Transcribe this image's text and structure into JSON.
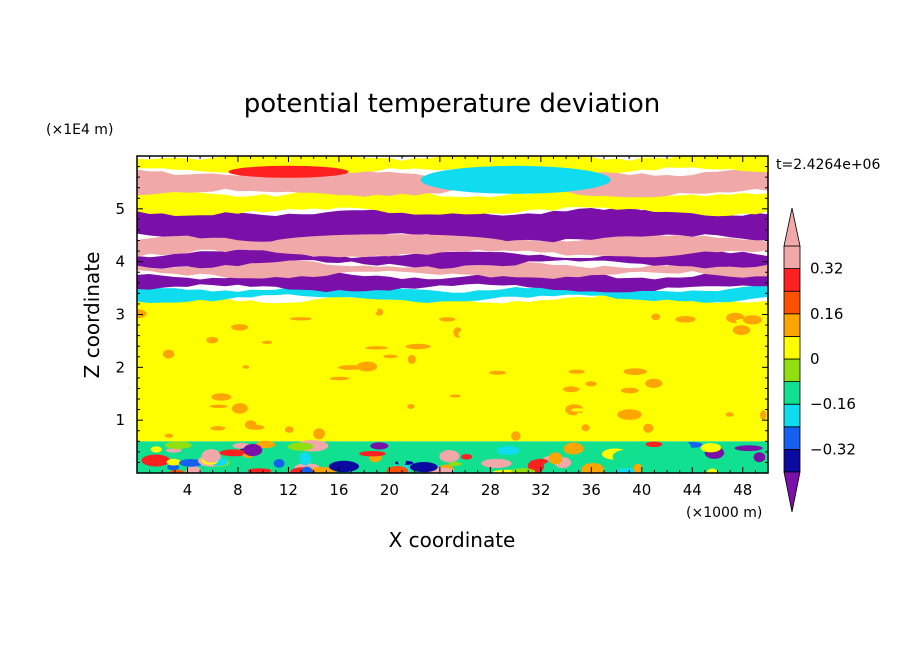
{
  "chart_data": {
    "type": "heatmap",
    "title": "potential temperature deviation",
    "xlabel": "X coordinate",
    "ylabel": "Z coordinate",
    "x_unit": "(×1000 m)",
    "y_unit": "(×1E4 m)",
    "time_label": "t=2.4264e+06",
    "xlim": [
      0,
      50
    ],
    "ylim": [
      0,
      6
    ],
    "x_ticks": [
      4,
      8,
      12,
      16,
      20,
      24,
      28,
      32,
      36,
      40,
      44,
      48
    ],
    "x_tick_labels": [
      "4",
      "8",
      "12",
      "16",
      "20",
      "24",
      "28",
      "32",
      "36",
      "40",
      "44",
      "48"
    ],
    "y_ticks": [
      1,
      2,
      3,
      4,
      5
    ],
    "y_tick_labels": [
      "1",
      "2",
      "3",
      "4",
      "5"
    ],
    "colorbar": {
      "levels": [
        -0.4,
        -0.32,
        -0.24,
        -0.16,
        -0.08,
        0,
        0.08,
        0.16,
        0.24,
        0.32,
        0.4
      ],
      "labeled_values": [
        0.32,
        0.16,
        0,
        -0.16,
        -0.32
      ],
      "labels": [
        "0.32",
        "0.16",
        "0",
        "−0.16",
        "−0.32"
      ],
      "colors": [
        "#7a10a8",
        "#0a0aa0",
        "#1560f0",
        "#10dcf0",
        "#10e090",
        "#90e010",
        "#ffff00",
        "#ffa500",
        "#ff5000",
        "#ff2020",
        "#f0a8a8"
      ],
      "extend": "both"
    },
    "bands": [
      {
        "z": [
          0.0,
          0.6
        ],
        "value": -0.1,
        "note": "turbulent boundary layer, mixed -0.4..0.3"
      },
      {
        "z": [
          0.6,
          3.3
        ],
        "value": 0.04
      },
      {
        "z": [
          3.3,
          3.5
        ],
        "value": -0.2
      },
      {
        "z": [
          3.5,
          3.75
        ],
        "value": -0.45
      },
      {
        "z": [
          3.75,
          3.95
        ],
        "value": 0.45
      },
      {
        "z": [
          3.95,
          4.15
        ],
        "value": -0.45
      },
      {
        "z": [
          4.15,
          4.45
        ],
        "value": 0.45
      },
      {
        "z": [
          4.45,
          4.95
        ],
        "value": -0.45
      },
      {
        "z": [
          4.95,
          5.3
        ],
        "value": 0.0
      },
      {
        "z": [
          5.3,
          5.7
        ],
        "value": 0.45
      },
      {
        "z": [
          5.7,
          6.0
        ],
        "value": 0.04
      }
    ]
  }
}
